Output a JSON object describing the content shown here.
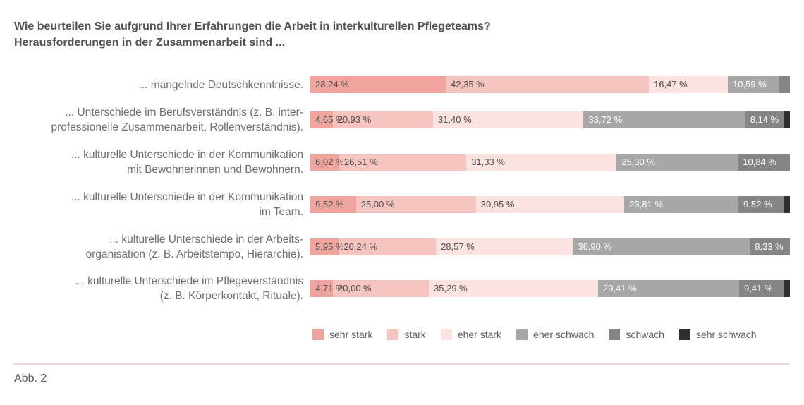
{
  "title": {
    "line1": "Wie beurteilen Sie aufgrund Ihrer Erfahrungen die Arbeit in interkulturellen Pflegeteams?",
    "line2": "Herausforderungen in der Zusammenarbeit sind ..."
  },
  "figure_label": "Abb. 2",
  "colors": {
    "title_text": "#56504e",
    "category_text": "#6d6d6d",
    "bar_label_dark": "#4d4d4d",
    "bar_label_light": "#ffffff",
    "divider": "#f3d8d5",
    "figure_label_text": "#5a5a5a"
  },
  "chart_data": {
    "type": "bar",
    "orientation": "horizontal",
    "stacked": true,
    "value_unit": "percent",
    "xlim": [
      0,
      100
    ],
    "grid": false,
    "legend_position": "bottom",
    "title": "Wie beurteilen Sie aufgrund Ihrer Erfahrungen die Arbeit in interkulturellen Pflegeteams? Herausforderungen in der Zusammenarbeit sind ...",
    "series_names": [
      "sehr stark",
      "stark",
      "eher stark",
      "eher schwach",
      "schwach",
      "sehr schwach"
    ],
    "series_colors": [
      "#efa59d",
      "#f5c4be",
      "#fce3e0",
      "#a7a7a7",
      "#858585",
      "#302f2f"
    ],
    "categories": [
      "... mangelnde Deutschkenntnisse.",
      "... Unterschiede im Berufsverständnis (z. B. interprofessionelle Zusammenarbeit, Rollenverständnis).",
      "... kulturelle Unterschiede in der Kommunikation mit Bewohnerinnen und Bewohnern.",
      "... kulturelle Unterschiede in der Kommunikation im Team.",
      "... kulturelle Unterschiede in der Arbeitsorganisation (z. B. Arbeitstempo, Hierarchie).",
      "... kulturelle Unterschiede im Pflegeverständnis (z. B. Körperkontakt, Rituale)."
    ],
    "category_label_lines": [
      [
        "... mangelnde Deutschkenntnisse."
      ],
      [
        "... Unterschiede im Berufsverständnis (z. B. inter-",
        "professionelle Zusammenarbeit, Rollenverständnis)."
      ],
      [
        "... kulturelle Unterschiede in der Kommunikation",
        "mit Bewohnerinnen und Bewohnern."
      ],
      [
        "... kulturelle Unterschiede in der Kommunikation",
        "im Team."
      ],
      [
        "... kulturelle Unterschiede in der Arbeits-",
        "organisation (z. B. Arbeitstempo, Hierarchie)."
      ],
      [
        "... kulturelle Unterschiede im Pflegeverständnis",
        "(z. B. Körperkontakt, Rituale)."
      ]
    ],
    "rows": [
      {
        "values": [
          28.24,
          42.35,
          16.47,
          10.59,
          2.35,
          0
        ],
        "labels": [
          "28,24 %",
          "42,35 %",
          "16,47 %",
          "10,59 %",
          "",
          ""
        ]
      },
      {
        "values": [
          4.65,
          20.93,
          31.4,
          33.72,
          8.14,
          1.16
        ],
        "labels": [
          "4,65 %",
          "20,93 %",
          "31,40 %",
          "33,72 %",
          "8,14 %",
          ""
        ]
      },
      {
        "values": [
          6.02,
          26.51,
          31.33,
          25.3,
          10.84,
          0
        ],
        "labels": [
          "6,02 %",
          "26,51 %",
          "31,33 %",
          "25,30 %",
          "10,84 %",
          ""
        ]
      },
      {
        "values": [
          9.52,
          25.0,
          30.95,
          23.81,
          9.52,
          1.19
        ],
        "labels": [
          "9,52 %",
          "25,00 %",
          "30,95 %",
          "23,81 %",
          "9,52 %",
          ""
        ]
      },
      {
        "values": [
          5.95,
          20.24,
          28.57,
          36.9,
          8.33,
          0
        ],
        "labels": [
          "5,95 %",
          "20,24 %",
          "28,57 %",
          "36,90 %",
          "8,33 %",
          ""
        ]
      },
      {
        "values": [
          4.71,
          20.0,
          35.29,
          29.41,
          9.41,
          1.18
        ],
        "labels": [
          "4,71 %",
          "20,00 %",
          "35,29 %",
          "29,41 %",
          "9,41 %",
          ""
        ]
      }
    ]
  }
}
